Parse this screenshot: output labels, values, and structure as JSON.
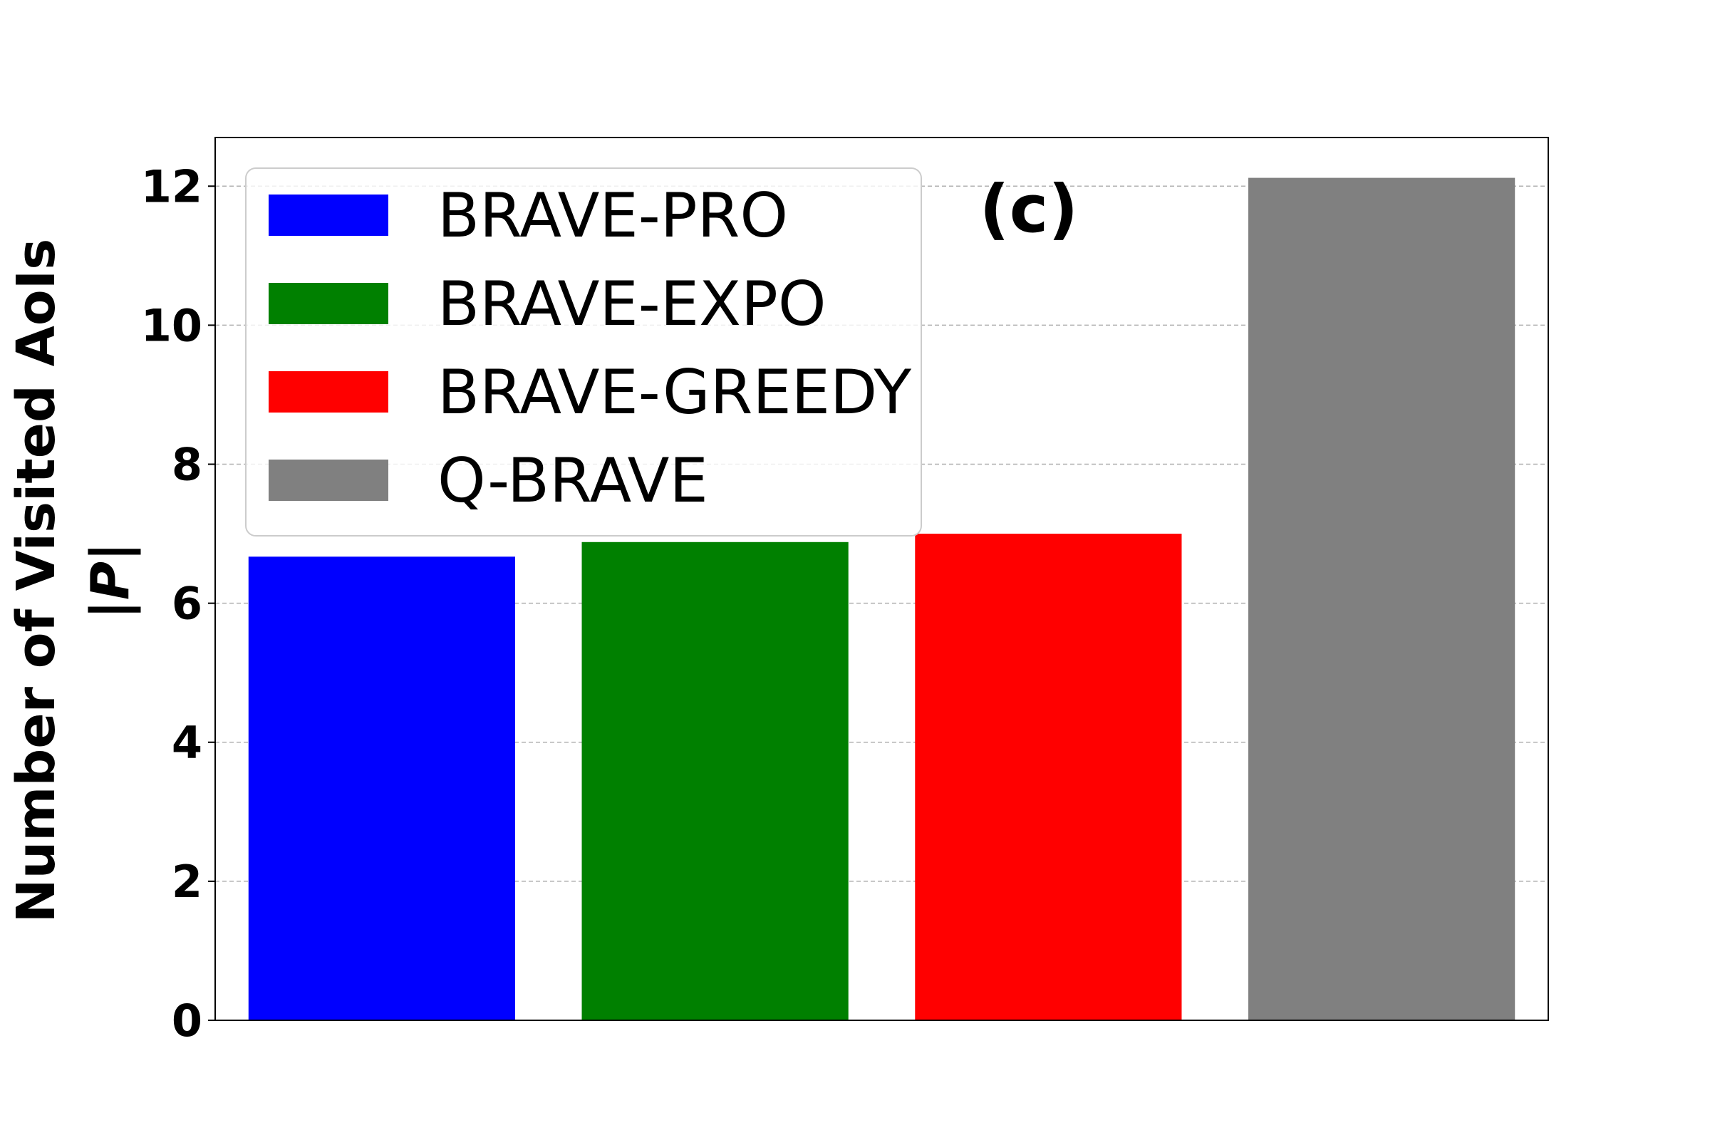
{
  "chart_data": {
    "type": "bar",
    "categories": [
      "BRAVE-PRO",
      "BRAVE-EXPO",
      "BRAVE-GREEDY",
      "Q-BRAVE"
    ],
    "values": [
      6.67,
      6.88,
      7.0,
      12.12
    ],
    "colors": [
      "#0000ff",
      "#008000",
      "#ff0000",
      "#808080"
    ],
    "ylabel_line1": "Number of Visited AoIs",
    "ylabel_line2": "|P|",
    "panel_label": "(c)",
    "ylim": [
      0,
      12.7
    ],
    "yticks": [
      0,
      2,
      4,
      6,
      8,
      10,
      12
    ],
    "grid": true,
    "legend": {
      "placement": "top-left",
      "entries": [
        {
          "label": "BRAVE-PRO",
          "color": "#0000ff"
        },
        {
          "label": "BRAVE-EXPO",
          "color": "#008000"
        },
        {
          "label": "BRAVE-GREEDY",
          "color": "#ff0000"
        },
        {
          "label": "Q-BRAVE",
          "color": "#808080"
        }
      ]
    }
  }
}
